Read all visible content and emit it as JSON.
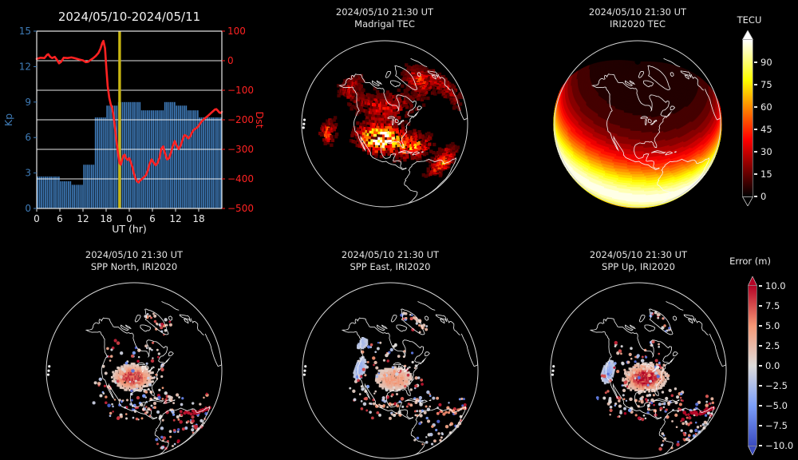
{
  "page": {
    "background": "#000000"
  },
  "panels": {
    "kp_dst": {
      "title": "2024/05/10-2024/05/11",
      "xlabel": "UT (hr)",
      "left_label": "Kp",
      "right_label": "Dst"
    },
    "madrigal": {
      "title_line1": "2024/05/10 21:30 UT",
      "title_line2": "Madrigal TEC"
    },
    "iri_tec": {
      "title_line1": "2024/05/10 21:30 UT",
      "title_line2": "IRI2020 TEC"
    },
    "spp_north": {
      "title_line1": "2024/05/10 21:30 UT",
      "title_line2": "SPP North, IRI2020"
    },
    "spp_east": {
      "title_line1": "2024/05/10 21:30 UT",
      "title_line2": "SPP East, IRI2020"
    },
    "spp_up": {
      "title_line1": "2024/05/10 21:30 UT",
      "title_line2": "SPP Up, IRI2020"
    }
  },
  "colorbars": {
    "tec": {
      "label": "TECU",
      "ticks": [
        "90",
        "75",
        "60",
        "45",
        "30",
        "15",
        "0"
      ],
      "colormap": "hot",
      "extend": "both"
    },
    "error": {
      "label": "Error (m)",
      "ticks": [
        "10.0",
        "7.5",
        "5.0",
        "2.5",
        "0.0",
        "−2.5",
        "−5.0",
        "−7.5",
        "−10.0"
      ],
      "colormap": "coolwarm",
      "extend": "both"
    }
  },
  "chart_data": [
    {
      "id": "kp_dst",
      "type": "bar+line",
      "title": "2024/05/10-2024/05/11",
      "xlabel": "UT (hr)",
      "x_range_hours": [
        0,
        48
      ],
      "x_ticks": [
        {
          "hour": 0,
          "label": "0"
        },
        {
          "hour": 6,
          "label": "6"
        },
        {
          "hour": 12,
          "label": "12"
        },
        {
          "hour": 18,
          "label": "18"
        },
        {
          "hour": 24,
          "label": "0"
        },
        {
          "hour": 30,
          "label": "6"
        },
        {
          "hour": 36,
          "label": "12"
        },
        {
          "hour": 42,
          "label": "18"
        }
      ],
      "left_axis": {
        "label": "Kp",
        "min": 0,
        "max": 15,
        "ticks": [
          0,
          3,
          6,
          9,
          12,
          15
        ],
        "color": "#3f7cb8"
      },
      "right_axis": {
        "label": "Dst",
        "min": -500,
        "max": 100,
        "ticks": [
          {
            "v": 100,
            "label": "100"
          },
          {
            "v": 0,
            "label": "0"
          },
          {
            "v": -100,
            "label": "−100"
          },
          {
            "v": -200,
            "label": "−200"
          },
          {
            "v": -300,
            "label": "−300"
          },
          {
            "v": -400,
            "label": "−400"
          },
          {
            "v": -500,
            "label": "−500"
          }
        ],
        "color": "#ff2222"
      },
      "grid_dst": [
        0,
        -100,
        -200,
        -300,
        -400
      ],
      "kp_3hr_values": [
        2.7,
        2.7,
        2.3,
        2.0,
        3.7,
        7.7,
        8.7,
        9.0,
        9.0,
        8.3,
        8.3,
        9.0,
        8.7,
        8.3,
        7.7,
        7.7
      ],
      "dst_series": [
        [
          0,
          6
        ],
        [
          1,
          10
        ],
        [
          2,
          9
        ],
        [
          2.7,
          20
        ],
        [
          3,
          22
        ],
        [
          3.5,
          13
        ],
        [
          4,
          9
        ],
        [
          4.7,
          13
        ],
        [
          5.3,
          2
        ],
        [
          5.8,
          -9
        ],
        [
          6.3,
          -4
        ],
        [
          7,
          10
        ],
        [
          8,
          9
        ],
        [
          9,
          11
        ],
        [
          10,
          8
        ],
        [
          11,
          4
        ],
        [
          12,
          1
        ],
        [
          12.7,
          -5
        ],
        [
          13.3,
          -4
        ],
        [
          14,
          3
        ],
        [
          14.7,
          9
        ],
        [
          15.3,
          16
        ],
        [
          16,
          26
        ],
        [
          16.5,
          40
        ],
        [
          17,
          60
        ],
        [
          17.3,
          67
        ],
        [
          17.7,
          42
        ],
        [
          18,
          -15
        ],
        [
          18.4,
          -85
        ],
        [
          18.8,
          -125
        ],
        [
          19.2,
          -148
        ],
        [
          19.6,
          -160
        ],
        [
          20,
          -195
        ],
        [
          20.4,
          -240
        ],
        [
          20.8,
          -285
        ],
        [
          21.2,
          -325
        ],
        [
          21.5,
          -347
        ],
        [
          21.8,
          -352
        ],
        [
          22.1,
          -338
        ],
        [
          22.4,
          -323
        ],
        [
          22.8,
          -318
        ],
        [
          23.2,
          -331
        ],
        [
          23.6,
          -336
        ],
        [
          24,
          -330
        ],
        [
          24.4,
          -344
        ],
        [
          24.8,
          -360
        ],
        [
          25.2,
          -382
        ],
        [
          25.6,
          -398
        ],
        [
          26,
          -408
        ],
        [
          26.4,
          -412
        ],
        [
          26.8,
          -406
        ],
        [
          27.3,
          -400
        ],
        [
          27.8,
          -394
        ],
        [
          28.3,
          -388
        ],
        [
          28.8,
          -372
        ],
        [
          29.3,
          -348
        ],
        [
          29.8,
          -334
        ],
        [
          30.3,
          -345
        ],
        [
          30.8,
          -354
        ],
        [
          31.3,
          -347
        ],
        [
          31.8,
          -330
        ],
        [
          32.3,
          -298
        ],
        [
          32.8,
          -290
        ],
        [
          33.3,
          -315
        ],
        [
          33.8,
          -334
        ],
        [
          34.3,
          -330
        ],
        [
          34.8,
          -312
        ],
        [
          35.3,
          -288
        ],
        [
          35.8,
          -272
        ],
        [
          36.3,
          -288
        ],
        [
          36.8,
          -299
        ],
        [
          37.3,
          -288
        ],
        [
          37.8,
          -268
        ],
        [
          38.3,
          -252
        ],
        [
          38.8,
          -255
        ],
        [
          39.3,
          -263
        ],
        [
          39.8,
          -256
        ],
        [
          40.3,
          -242
        ],
        [
          40.8,
          -233
        ],
        [
          41.3,
          -229
        ],
        [
          41.8,
          -224
        ],
        [
          42.3,
          -214
        ],
        [
          42.8,
          -205
        ],
        [
          43.3,
          -199
        ],
        [
          43.8,
          -193
        ],
        [
          44.3,
          -188
        ],
        [
          44.8,
          -182
        ],
        [
          45.3,
          -176
        ],
        [
          45.8,
          -170
        ],
        [
          46.2,
          -165
        ],
        [
          46.6,
          -164
        ],
        [
          47,
          -170
        ],
        [
          47.4,
          -176
        ],
        [
          47.8,
          -177
        ],
        [
          48,
          -173
        ]
      ],
      "event_hour": 21.5,
      "colors": {
        "bars": "#3e79b6",
        "dst": "#ff2222",
        "event": "#c9b611",
        "grid": "#ffffff"
      }
    },
    {
      "id": "madrigal_tec",
      "type": "globe-heatmap",
      "style": "patchy",
      "projection_center": [
        -95,
        43
      ],
      "colormap": "hot",
      "value_range_tecu": [
        0,
        110
      ],
      "features": [
        {
          "lon": -98,
          "lat": 33,
          "sx": 16,
          "sy": 8.5,
          "amp": 112
        },
        {
          "lon": -72,
          "lat": 24,
          "sx": 12,
          "sy": 7,
          "amp": 62
        },
        {
          "lon": -50,
          "lat": 2,
          "sx": 11,
          "sy": 8,
          "amp": 58
        },
        {
          "lon": -144,
          "lat": 25,
          "sx": 6,
          "sy": 8,
          "amp": 46
        },
        {
          "lon": -30,
          "lat": 63,
          "sx": 19,
          "sy": 9,
          "amp": 40
        },
        {
          "lon": -95,
          "lat": 55,
          "sx": 33,
          "sy": 8,
          "amp": 34
        },
        {
          "lon": -150,
          "lat": 60,
          "sx": 14,
          "sy": 8,
          "amp": 30
        },
        {
          "lon": -10,
          "lat": 45,
          "sx": 12,
          "sy": 20,
          "amp": 26
        }
      ]
    },
    {
      "id": "iri_tec",
      "type": "globe-heatmap",
      "style": "smooth-banded",
      "projection_center": [
        -95,
        43
      ],
      "colormap": "hot",
      "peak_lat": -20,
      "sigma": 26,
      "peak_value": 100,
      "base_value": 5,
      "bands": 19
    },
    {
      "id": "spp_north",
      "type": "globe-scatter",
      "projection_center": [
        -95,
        43
      ],
      "colormap": "coolwarm",
      "error_range_m": [
        -10,
        10
      ],
      "blob": {
        "lon": -96,
        "lat": 38.5,
        "sx": 12,
        "sy": 6,
        "value": 7.5
      },
      "strips": [],
      "dots_seed": 11,
      "dot_count": 250,
      "red_bias": 0.5,
      "arc": {
        "from": [
          -63,
          7
        ],
        "to": [
          -36,
          -6
        ],
        "count": 24,
        "value": 9
      }
    },
    {
      "id": "spp_east",
      "type": "globe-scatter",
      "projection_center": [
        -95,
        43
      ],
      "colormap": "coolwarm",
      "error_range_m": [
        -10,
        10
      ],
      "blob": {
        "lon": -92,
        "lat": 37.5,
        "sx": 12,
        "sy": 6,
        "value": 4.2
      },
      "strips": [
        {
          "lon": -122,
          "lat": 41,
          "sx": 4,
          "sy": 7,
          "value": -3.2
        },
        {
          "lon": -131,
          "lat": 57,
          "sx": 6,
          "sy": 4,
          "value": -2.5
        }
      ],
      "dots_seed": 29,
      "dot_count": 230,
      "red_bias": 0.25,
      "arc": {
        "from": [
          -63,
          7
        ],
        "to": [
          -36,
          -6
        ],
        "count": 14,
        "value": 5
      }
    },
    {
      "id": "spp_up",
      "type": "globe-scatter",
      "projection_center": [
        -95,
        43
      ],
      "colormap": "coolwarm",
      "error_range_m": [
        -10,
        10
      ],
      "blob": {
        "lon": -89,
        "lat": 38,
        "sx": 12.5,
        "sy": 6.5,
        "value": 9
      },
      "strips": [
        {
          "lon": -121,
          "lat": 39,
          "sx": 4.5,
          "sy": 6.5,
          "value": -3.5
        }
      ],
      "dots_seed": 53,
      "dot_count": 260,
      "red_bias": 0.75,
      "arc": {
        "from": [
          -63,
          7
        ],
        "to": [
          -36,
          -6
        ],
        "count": 26,
        "value": 9.5
      }
    }
  ],
  "globe_common": {
    "limb_dots": [
      [
        -176,
        12
      ],
      [
        -175,
        9
      ],
      [
        -174.5,
        6
      ]
    ],
    "coast_color": "#f5f5f5"
  }
}
